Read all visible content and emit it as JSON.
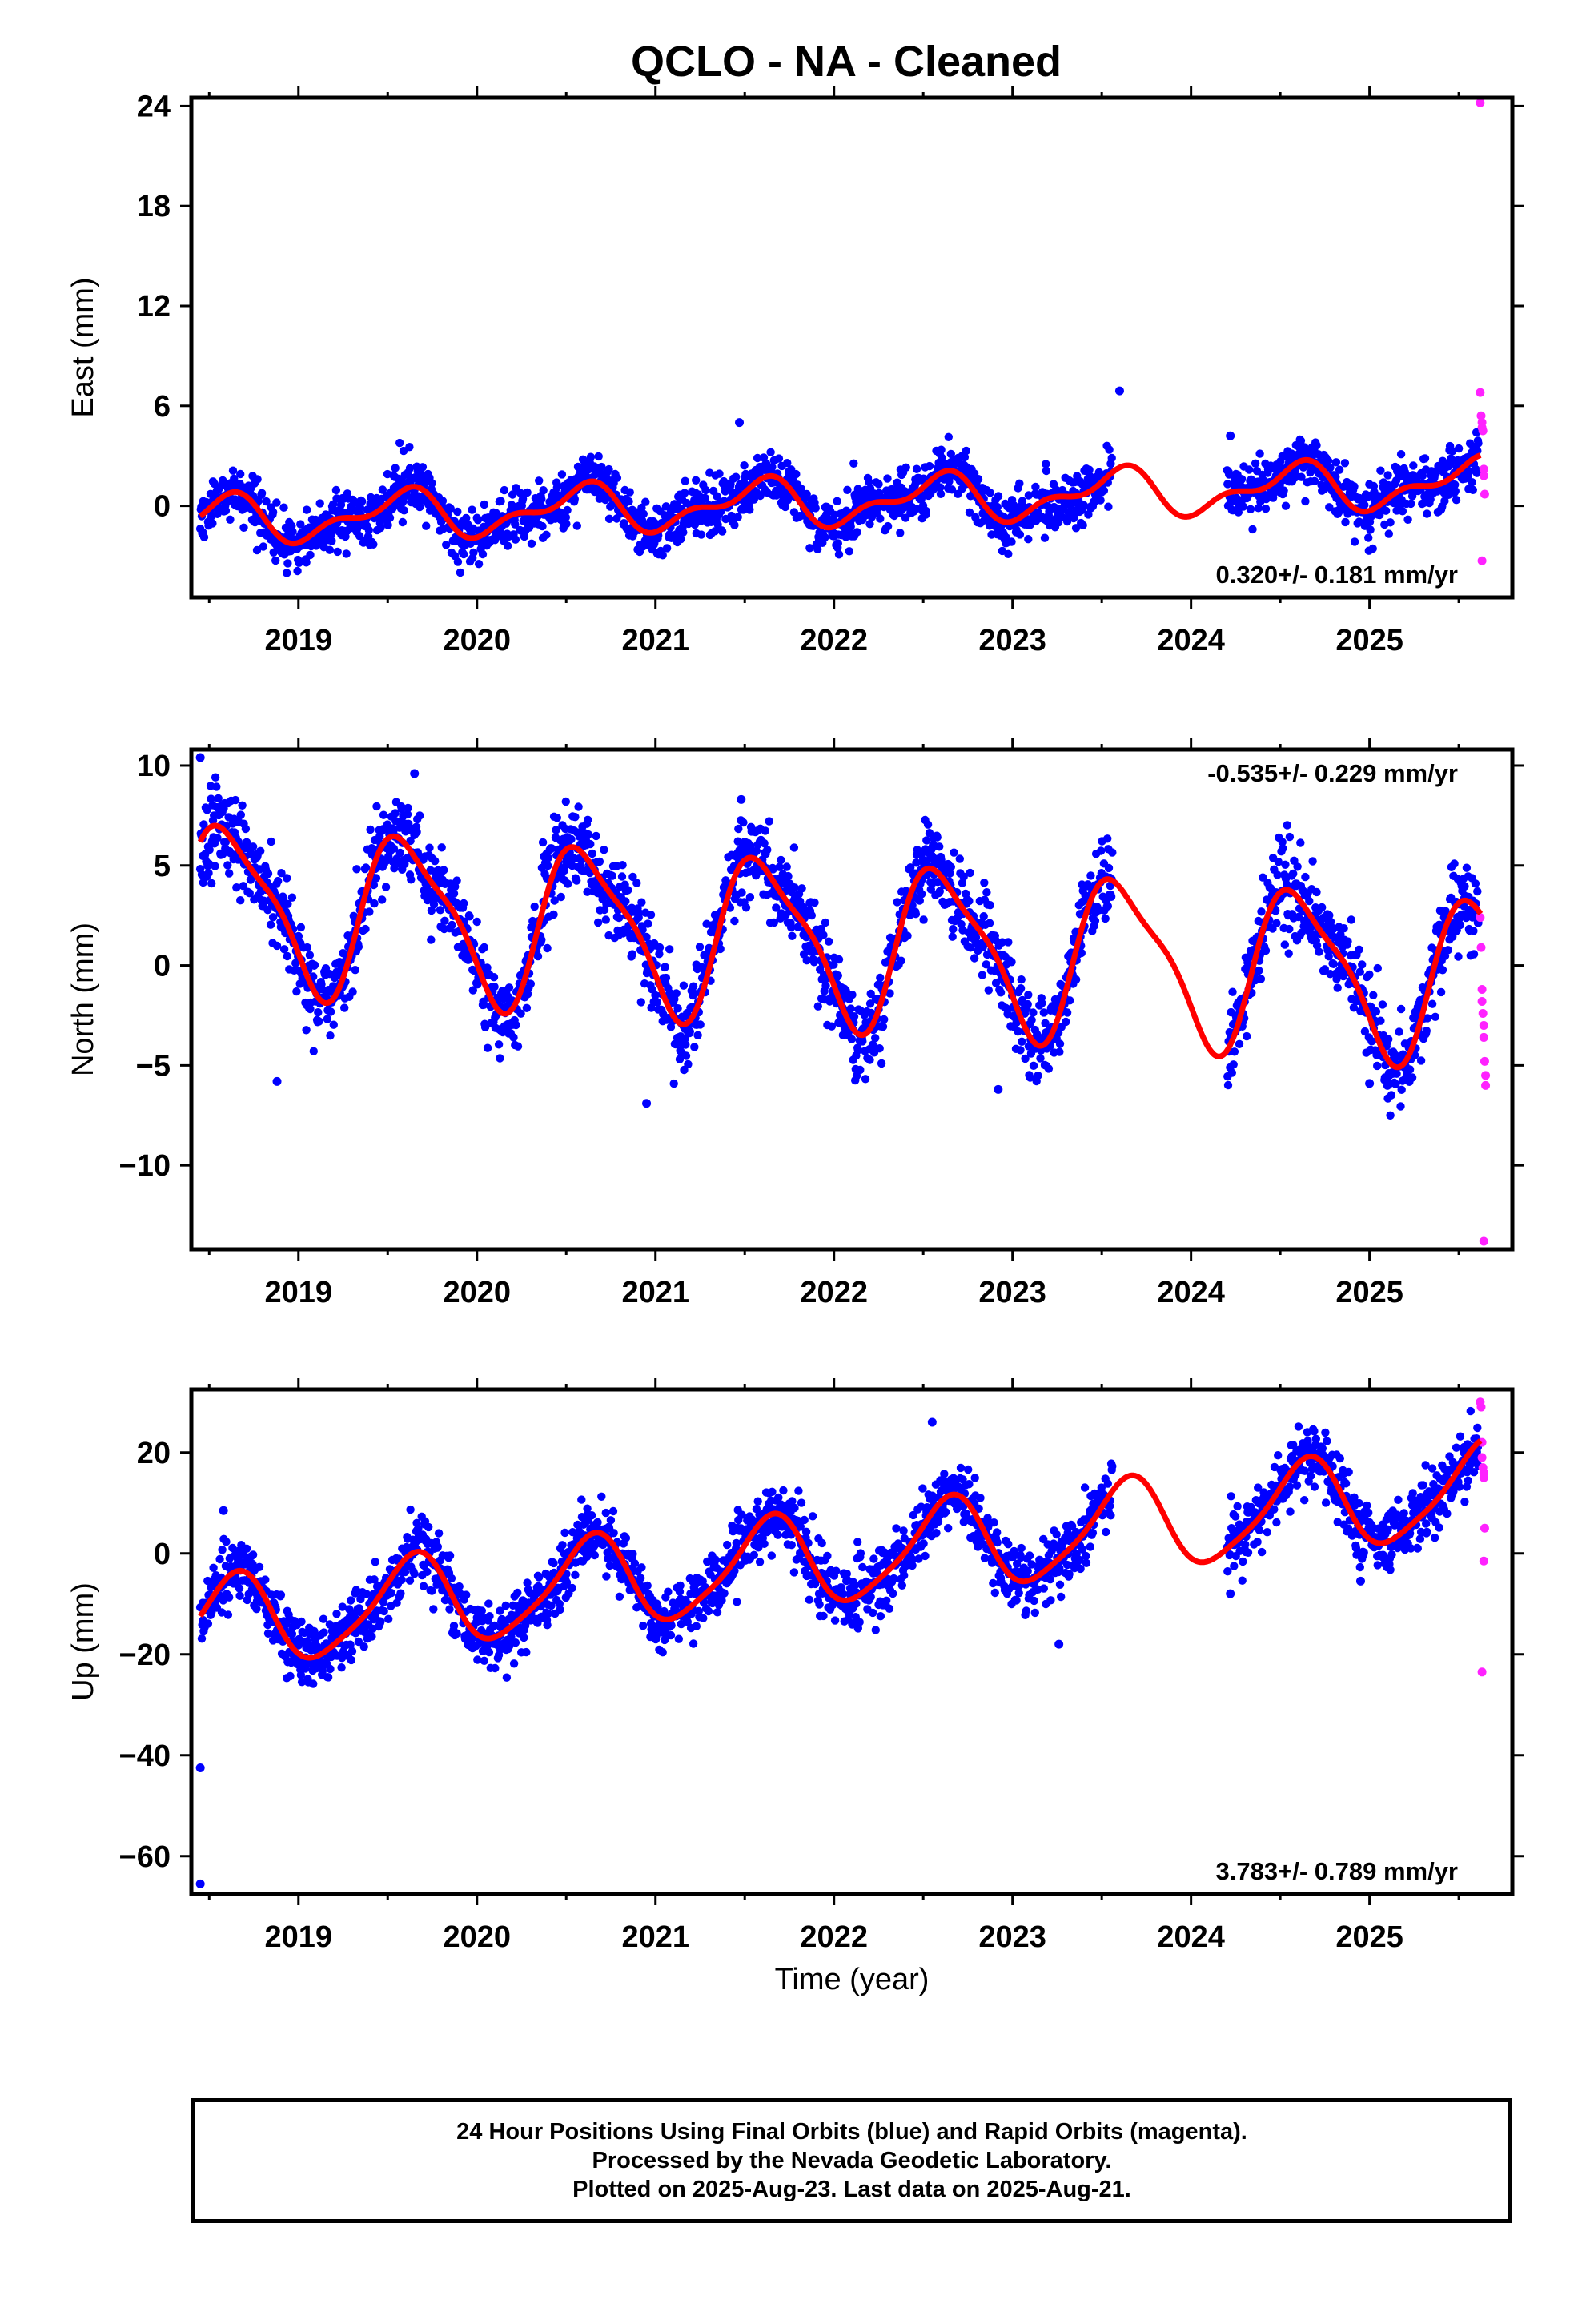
{
  "title": "QCLO  - NA - Cleaned",
  "xlabel": "Time (year)",
  "colors": {
    "final": "#0000ff",
    "rapid": "#ff22ff",
    "model": "#ff0000",
    "frame": "#000000"
  },
  "footer": {
    "line1": "24 Hour Positions Using Final Orbits (blue) and Rapid Orbits (magenta).",
    "line2": "Processed by the Nevada Geodetic Laboratory.",
    "line3": "Plotted on 2025-Aug-23. Last data on 2025-Aug-21."
  },
  "chart_data": [
    {
      "type": "scatter",
      "component": "East",
      "ylabel": "East (mm)",
      "rate_label": "0.320+/- 0.181 mm/yr",
      "xlim": [
        2018.4,
        2025.8
      ],
      "ylim": [
        -5.5,
        24.5
      ],
      "xticks": [
        2019,
        2020,
        2021,
        2022,
        2023,
        2024,
        2025
      ],
      "xtick_labels": [
        "2019",
        "2020",
        "2021",
        "2022",
        "2023",
        "2024",
        "2025"
      ],
      "yticks": [
        0,
        6,
        12,
        18,
        24
      ],
      "ytick_labels": [
        "0",
        "6",
        "12",
        "18",
        "24"
      ],
      "data_start": 2018.45,
      "gaps": [
        [
          2023.56,
          2024.2
        ]
      ],
      "data_end": 2025.61,
      "model": {
        "offset": 0.25,
        "trend": 0.32,
        "reference_year": 2022.0,
        "annual_cos": -1.1,
        "annual_sin": -0.5,
        "semiannual_cos": -0.4,
        "semiannual_sin": 0.5
      },
      "noise_sd": 0.8,
      "outliers_final": [
        [
          2023.6,
          6.9
        ],
        [
          2024.22,
          4.2
        ],
        [
          2021.47,
          5.0
        ]
      ],
      "rapid_points": [
        [
          2025.62,
          24.2
        ],
        [
          2025.62,
          6.8
        ],
        [
          2025.625,
          5.4
        ],
        [
          2025.63,
          5.0
        ],
        [
          2025.63,
          4.7
        ],
        [
          2025.635,
          4.5
        ],
        [
          2025.64,
          2.2
        ],
        [
          2025.64,
          1.8
        ],
        [
          2025.645,
          0.7
        ],
        [
          2025.63,
          -3.3
        ]
      ]
    },
    {
      "type": "scatter",
      "component": "North",
      "ylabel": "North (mm)",
      "rate_label": "-0.535+/- 0.229 mm/yr",
      "xlim": [
        2018.4,
        2025.8
      ],
      "ylim": [
        -14.2,
        10.8
      ],
      "xticks": [
        2019,
        2020,
        2021,
        2022,
        2023,
        2024,
        2025
      ],
      "xtick_labels": [
        "2019",
        "2020",
        "2021",
        "2022",
        "2023",
        "2024",
        "2025"
      ],
      "yticks": [
        -10,
        -5,
        0,
        5,
        10
      ],
      "ytick_labels": [
        "−10",
        "−5",
        "0",
        "5",
        "10"
      ],
      "data_start": 2018.45,
      "gaps": [
        [
          2023.56,
          2024.2
        ]
      ],
      "data_end": 2025.61,
      "model": {
        "offset": 1.2,
        "trend": -0.535,
        "reference_year": 2022.0,
        "annual_cos": -3.0,
        "annual_sin": -2.5,
        "semiannual_cos": 0.8,
        "semiannual_sin": -0.6
      },
      "noise_sd": 1.05,
      "outliers_final": [
        [
          2018.45,
          10.4
        ],
        [
          2019.65,
          9.6
        ],
        [
          2021.48,
          8.3
        ],
        [
          2018.88,
          -5.8
        ],
        [
          2020.95,
          -6.9
        ],
        [
          2022.92,
          -6.2
        ],
        [
          2025.0,
          -5.9
        ]
      ],
      "rapid_points": [
        [
          2025.62,
          2.4
        ],
        [
          2025.625,
          0.9
        ],
        [
          2025.63,
          -1.2
        ],
        [
          2025.63,
          -1.8
        ],
        [
          2025.635,
          -2.4
        ],
        [
          2025.64,
          -3.0
        ],
        [
          2025.64,
          -3.6
        ],
        [
          2025.645,
          -4.8
        ],
        [
          2025.65,
          -5.5
        ],
        [
          2025.65,
          -6.0
        ],
        [
          2025.64,
          -13.8
        ]
      ]
    },
    {
      "type": "scatter",
      "component": "Up",
      "ylabel": "Up (mm)",
      "rate_label": "3.783+/- 0.789 mm/yr",
      "xlim": [
        2018.4,
        2025.8
      ],
      "ylim": [
        -67.5,
        32.5
      ],
      "xticks": [
        2019,
        2020,
        2021,
        2022,
        2023,
        2024,
        2025
      ],
      "xtick_labels": [
        "2019",
        "2020",
        "2021",
        "2022",
        "2023",
        "2024",
        "2025"
      ],
      "yticks": [
        -60,
        -40,
        -20,
        0,
        20
      ],
      "ytick_labels": [
        "−60",
        "−40",
        "−20",
        "0",
        "20"
      ],
      "data_start": 2018.45,
      "gaps": [
        [
          2023.56,
          2024.2
        ]
      ],
      "data_end": 2025.61,
      "model": {
        "offset": -1.0,
        "trend": 3.783,
        "reference_year": 2022.0,
        "annual_cos": -6.0,
        "annual_sin": -6.6,
        "semiannual_cos": -1.5,
        "semiannual_sin": 0.8
      },
      "noise_sd": 3.2,
      "outliers_final": [
        [
          2018.45,
          -42.5
        ],
        [
          2018.45,
          -65.5
        ],
        [
          2018.58,
          8.5
        ],
        [
          2022.55,
          26.0
        ],
        [
          2023.26,
          -18.0
        ],
        [
          2024.22,
          -8.0
        ],
        [
          2024.95,
          -5.5
        ],
        [
          2025.53,
          20.0
        ]
      ],
      "rapid_points": [
        [
          2025.62,
          30.0
        ],
        [
          2025.625,
          29.0
        ],
        [
          2025.63,
          22.0
        ],
        [
          2025.63,
          19.0
        ],
        [
          2025.635,
          17.0
        ],
        [
          2025.64,
          16.0
        ],
        [
          2025.64,
          15.0
        ],
        [
          2025.645,
          5.0
        ],
        [
          2025.64,
          -1.5
        ],
        [
          2025.63,
          -23.5
        ]
      ]
    }
  ]
}
